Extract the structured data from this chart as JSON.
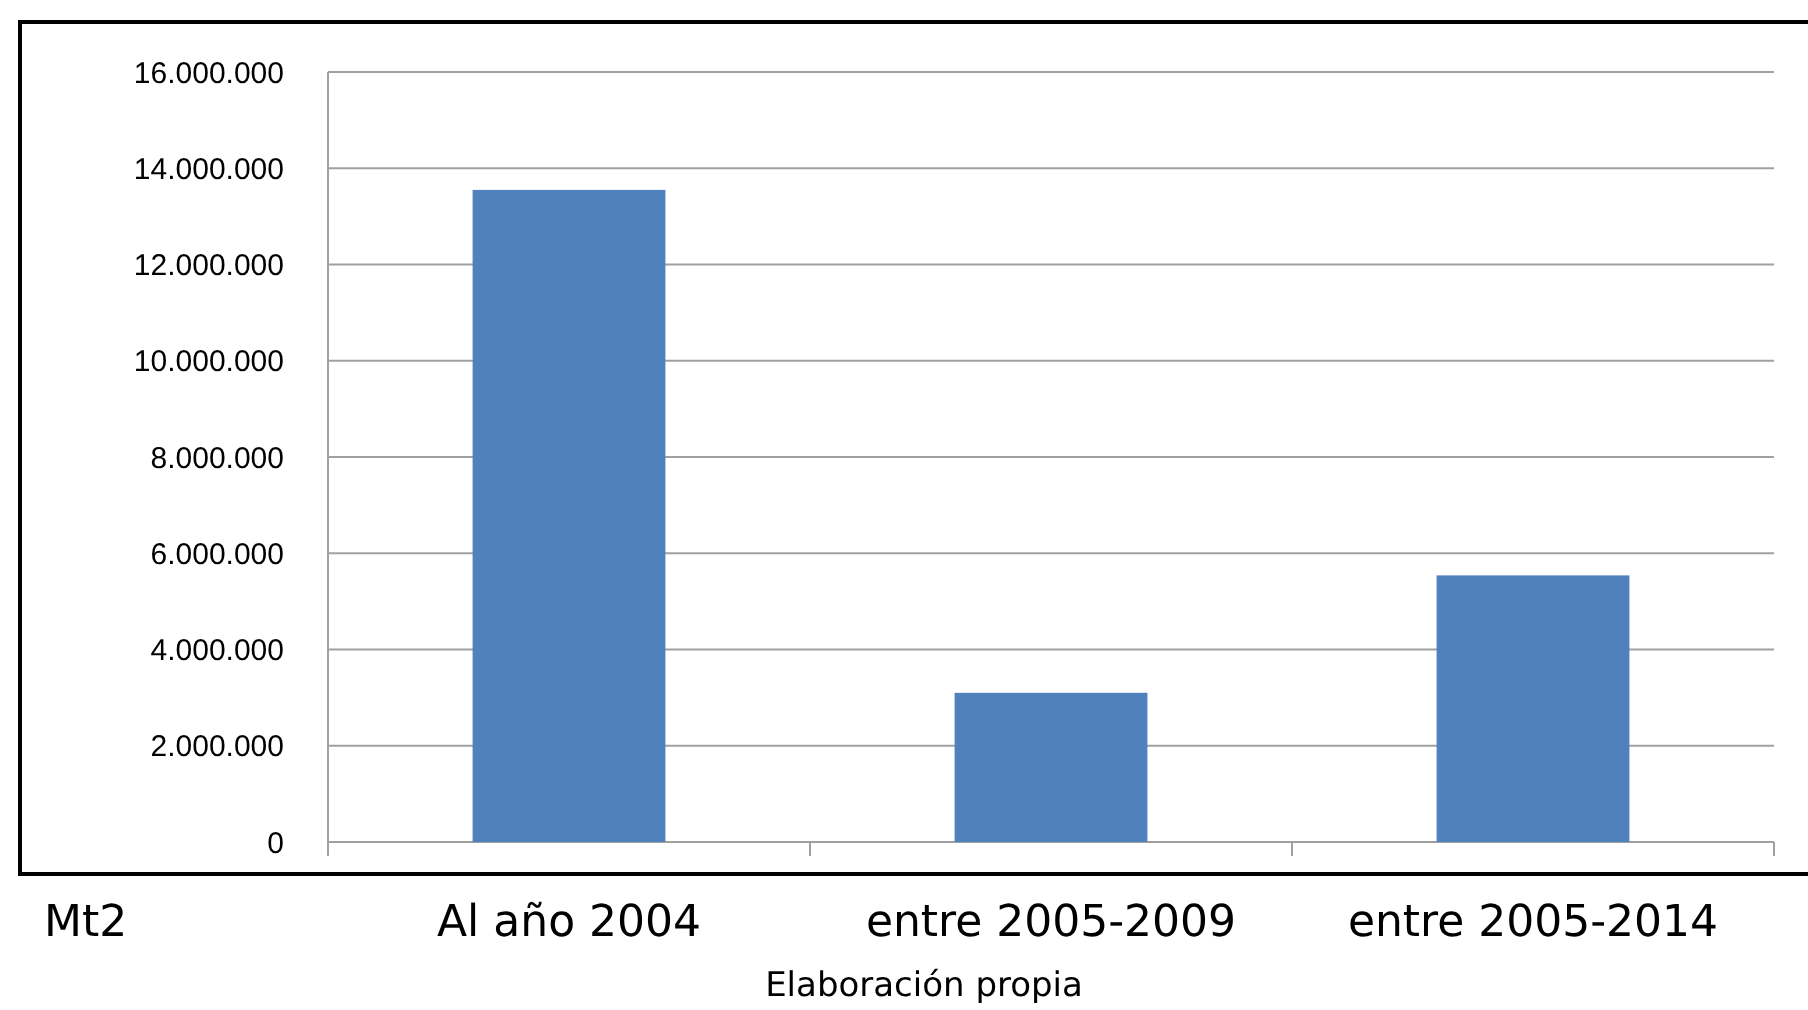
{
  "chart_data": {
    "type": "bar",
    "categories": [
      "Al año 2004",
      "entre 2005-2009",
      "entre 2005-2014"
    ],
    "values": [
      13550000,
      3100000,
      5540000
    ],
    "color": "#4f81bd",
    "ylabel": "Mt2",
    "annotations": [
      "Elaboración propia"
    ],
    "ylim": [
      0,
      16000000
    ],
    "yticks": [
      {
        "value": 0,
        "label": "0"
      },
      {
        "value": 2000000,
        "label": "2.000.000"
      },
      {
        "value": 4000000,
        "label": "4.000.000"
      },
      {
        "value": 6000000,
        "label": "6.000.000"
      },
      {
        "value": 8000000,
        "label": "8.000.000"
      },
      {
        "value": 10000000,
        "label": "10.000.000"
      },
      {
        "value": 12000000,
        "label": "12.000.000"
      },
      {
        "value": 14000000,
        "label": "14.000.000"
      },
      {
        "value": 16000000,
        "label": "16.000.000"
      }
    ],
    "grid": "y"
  }
}
